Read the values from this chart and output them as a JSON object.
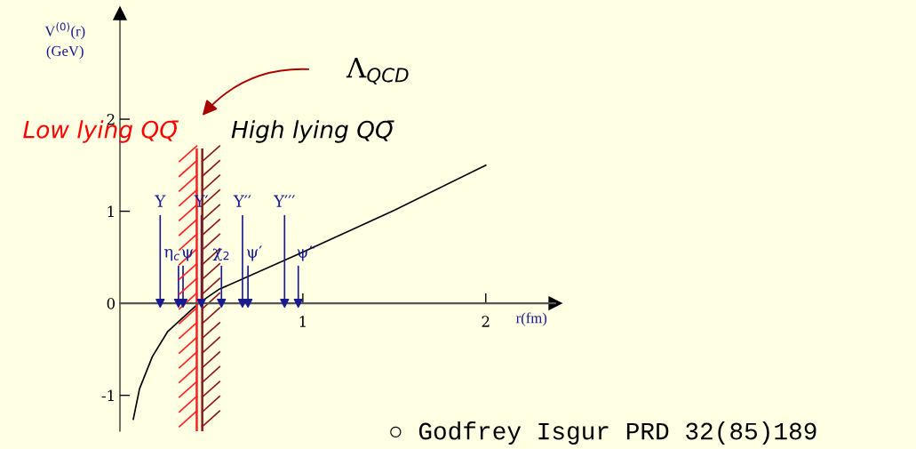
{
  "chart_data": {
    "type": "line",
    "xlabel": "r(fm)",
    "ylabel": "V$^{(0)}$(r)\n(GeV)",
    "x": [
      0.073,
      0.107,
      0.177,
      0.26,
      0.43,
      0.54,
      0.96,
      1.5,
      2.0
    ],
    "series": [
      {
        "color": "#000000",
        "values": [
          -1.26,
          -0.93,
          -0.58,
          -0.31,
          0.0,
          0.15,
          0.52,
          1.01,
          1.5
        ],
        "marker": "none"
      },
      {
        "type": "scatter",
        "name": "Υ",
        "x": [
          0.22
        ],
        "values": [
          0
        ],
        "color": "#1a1a90",
        "marker": "triangle"
      },
      {
        "type": "scatter",
        "name": "η$_{c}$",
        "x": [
          0.32
        ],
        "values": [
          0
        ],
        "color": "#1a1a90",
        "marker": "triangle"
      },
      {
        "type": "scatter",
        "name": "ψ",
        "x": [
          0.345
        ],
        "values": [
          0
        ],
        "color": "#1a1a90",
        "marker": "triangle"
      },
      {
        "type": "scatter",
        "name": "Υ′",
        "x": [
          0.445
        ],
        "values": [
          0
        ],
        "color": "#1a1a90",
        "marker": "triangle"
      },
      {
        "type": "scatter",
        "name": "χ$_{2}$",
        "x": [
          0.555
        ],
        "values": [
          0
        ],
        "color": "#1a1a90",
        "marker": "triangle"
      },
      {
        "type": "scatter",
        "name": "Υ′′",
        "x": [
          0.67
        ],
        "values": [
          0
        ],
        "color": "#1a1a90",
        "marker": "triangle"
      },
      {
        "type": "scatter",
        "name": "ψ′",
        "x": [
          0.7
        ],
        "values": [
          0
        ],
        "color": "#1a1a90",
        "marker": "triangle"
      },
      {
        "type": "scatter",
        "name": "Υ′′′",
        "x": [
          0.9
        ],
        "values": [
          0
        ],
        "color": "#1a1a90",
        "marker": "triangle"
      },
      {
        "type": "scatter",
        "name": "ψ′′",
        "x": [
          0.975
        ],
        "values": [
          0
        ],
        "color": "#1a1a90",
        "marker": "triangle"
      }
    ],
    "xlim": [
      0,
      2.38
    ],
    "ylim": [
      -1.39,
      3.15
    ],
    "xticks": [
      1,
      2
    ],
    "yticks": [
      -1,
      0,
      1,
      2
    ],
    "grid": false,
    "legend": false,
    "line_style": "solid",
    "ref_lines": [
      {
        "axis": "x",
        "value": 0.42,
        "label": null,
        "color": "#ff2020"
      },
      {
        "axis": "x",
        "value": 0.45,
        "label": null,
        "color": "#8b1a1a"
      }
    ],
    "annotations": [
      "Λ$_{QCD}$",
      "Low lying QQ̄",
      "High lying QQ̄",
      "○ Godfrey Isgur PRD 32(85)189"
    ]
  }
}
